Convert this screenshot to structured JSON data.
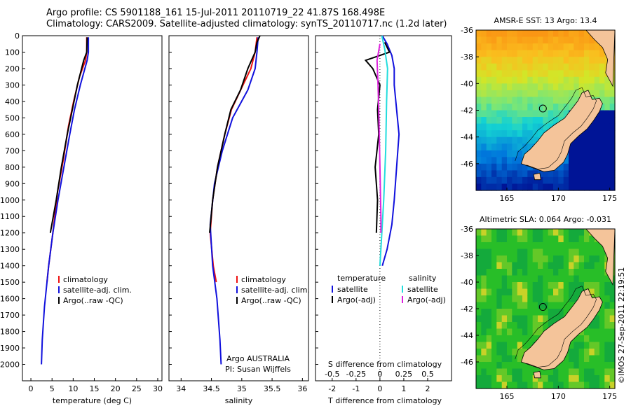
{
  "header": {
    "line1": "Argo profile: CS 5901188_161 15-Jul-2011 20110719_22 41.87S 168.498E",
    "line2": "Climatology: CARS2009. Satellite-adjusted climatology: synTS_20110717.nc (1.2d later)"
  },
  "credit": "©IMOS 27-Sep-2011 22:19:51",
  "colors": {
    "climatology": "#ee1111",
    "satellite": "#1111dd",
    "argo": "#000000",
    "sat_salinity": "#22dddd",
    "argo_salinity": "#dd22dd",
    "land": "#f4c49a"
  },
  "chart_data": [
    {
      "type": "line",
      "xlabel": "temperature (deg C)",
      "ylabel": "",
      "xlim": [
        -2,
        31
      ],
      "ylim": [
        2100,
        0
      ],
      "xticks": [
        0,
        5,
        10,
        15,
        20,
        25,
        30
      ],
      "yticks": [
        0,
        100,
        200,
        300,
        400,
        500,
        600,
        700,
        800,
        900,
        1000,
        1100,
        1200,
        1300,
        1400,
        1500,
        1600,
        1700,
        1800,
        1900,
        2000
      ],
      "legend": {
        "placement": "bottom-center",
        "entries": [
          "climatology",
          "satellite-adj. clim.",
          "Argo(..raw -QC)"
        ]
      },
      "series": [
        {
          "name": "climatology",
          "points": [
            [
              13.2,
              10
            ],
            [
              13.2,
              100
            ],
            [
              12.9,
              150
            ],
            [
              11.5,
              250
            ],
            [
              10.1,
              400
            ],
            [
              8.9,
              550
            ],
            [
              7.7,
              750
            ],
            [
              6.3,
              950
            ],
            [
              5.2,
              1200
            ],
            [
              4.2,
              1400
            ],
            [
              3.8,
              1500
            ]
          ]
        },
        {
          "name": "satellite-adj. clim.",
          "points": [
            [
              13.6,
              10
            ],
            [
              13.6,
              100
            ],
            [
              13.3,
              150
            ],
            [
              11.7,
              300
            ],
            [
              10.3,
              450
            ],
            [
              9.2,
              600
            ],
            [
              7.8,
              800
            ],
            [
              6.4,
              1000
            ],
            [
              5.2,
              1200
            ],
            [
              4.2,
              1400
            ],
            [
              3.2,
              1650
            ],
            [
              2.7,
              1850
            ],
            [
              2.5,
              2000
            ]
          ]
        },
        {
          "name": "Argo(..raw -QC)",
          "points": [
            [
              13.3,
              10
            ],
            [
              13.2,
              100
            ],
            [
              12.5,
              150
            ],
            [
              11.0,
              300
            ],
            [
              9.8,
              450
            ],
            [
              8.6,
              600
            ],
            [
              7.2,
              800
            ],
            [
              6.0,
              1000
            ],
            [
              4.6,
              1200
            ]
          ]
        }
      ]
    },
    {
      "type": "line",
      "xlabel": "salinity",
      "ylabel": "",
      "xlim": [
        33.8,
        36.1
      ],
      "ylim": [
        2100,
        0
      ],
      "xticks": [
        34,
        34.5,
        35,
        35.5,
        36
      ],
      "legend": {
        "placement": "bottom-right",
        "entries": [
          "climatology",
          "satellite-adj. clim.",
          "Argo(..raw -QC)"
        ]
      },
      "annotation": [
        "Argo AUSTRALIA",
        "PI: Susan Wijffels"
      ],
      "series": [
        {
          "name": "climatology",
          "points": [
            [
              35.25,
              10
            ],
            [
              35.22,
              100
            ],
            [
              35.15,
              200
            ],
            [
              35.02,
              300
            ],
            [
              34.83,
              450
            ],
            [
              34.72,
              600
            ],
            [
              34.6,
              800
            ],
            [
              34.52,
              1000
            ],
            [
              34.48,
              1200
            ],
            [
              34.53,
              1400
            ],
            [
              34.58,
              1500
            ]
          ]
        },
        {
          "name": "satellite-adj. clim.",
          "points": [
            [
              35.27,
              10
            ],
            [
              35.25,
              100
            ],
            [
              35.22,
              200
            ],
            [
              35.1,
              330
            ],
            [
              34.85,
              500
            ],
            [
              34.68,
              700
            ],
            [
              34.55,
              900
            ],
            [
              34.48,
              1150
            ],
            [
              34.52,
              1400
            ],
            [
              34.59,
              1600
            ],
            [
              34.64,
              1850
            ],
            [
              34.66,
              2000
            ]
          ]
        },
        {
          "name": "Argo(..raw -QC)",
          "points": [
            [
              35.3,
              0
            ],
            [
              35.25,
              40
            ],
            [
              35.22,
              100
            ],
            [
              35.1,
              200
            ],
            [
              34.98,
              330
            ],
            [
              34.82,
              450
            ],
            [
              34.72,
              600
            ],
            [
              34.6,
              800
            ],
            [
              34.52,
              1000
            ],
            [
              34.47,
              1200
            ]
          ]
        }
      ]
    },
    {
      "type": "line",
      "xlabel": "T difference from climatology",
      "xlabel_top": "S difference from climatology",
      "xlim": [
        -2.7,
        3.0
      ],
      "ylim": [
        2100,
        0
      ],
      "xticks": [
        "-2",
        "-1",
        "0",
        "1",
        "2"
      ],
      "sticks": [
        "-0.5",
        "-0.25",
        "0",
        "0.25",
        "0.5"
      ],
      "legend": {
        "placement": "bottom",
        "temperature_header": "temperature",
        "salinity_header": "salinity",
        "temperature_entries": [
          "satellite",
          "Argo(-adj)"
        ],
        "salinity_entries": [
          "satellite",
          "Argo(-adj)"
        ]
      },
      "series": [
        {
          "name": "satellite",
          "variable": "temperature",
          "points": [
            [
              0.1,
              0
            ],
            [
              0.3,
              50
            ],
            [
              0.5,
              120
            ],
            [
              0.6,
              200
            ],
            [
              0.6,
              300
            ],
            [
              0.7,
              450
            ],
            [
              0.8,
              600
            ],
            [
              0.7,
              800
            ],
            [
              0.6,
              1000
            ],
            [
              0.5,
              1150
            ],
            [
              0.3,
              1300
            ],
            [
              0.1,
              1400
            ]
          ]
        },
        {
          "name": "Argo(-adj)",
          "variable": "temperature",
          "points": [
            [
              0.2,
              40
            ],
            [
              0.4,
              100
            ],
            [
              -0.6,
              150
            ],
            [
              -0.3,
              200
            ],
            [
              0.0,
              300
            ],
            [
              -0.1,
              450
            ],
            [
              -0.05,
              600
            ],
            [
              -0.2,
              800
            ],
            [
              -0.1,
              1000
            ],
            [
              -0.15,
              1200
            ]
          ]
        },
        {
          "name": "satellite",
          "variable": "salinity",
          "points": [
            [
              0.02,
              0
            ],
            [
              0.05,
              80
            ],
            [
              0.08,
              200
            ],
            [
              0.07,
              400
            ],
            [
              0.06,
              700
            ],
            [
              0.04,
              1000
            ],
            [
              0.02,
              1200
            ],
            [
              0.0,
              1400
            ]
          ]
        },
        {
          "name": "Argo(-adj)",
          "variable": "salinity",
          "points": [
            [
              0.0,
              50
            ],
            [
              -0.03,
              150
            ],
            [
              -0.02,
              300
            ],
            [
              -0.01,
              500
            ],
            [
              0.0,
              800
            ],
            [
              0.01,
              1100
            ],
            [
              0.01,
              1200
            ]
          ]
        }
      ]
    },
    {
      "type": "heatmap",
      "title": "AMSR-E SST: 13 Argo: 13.4",
      "xticks": [
        "165",
        "170",
        "175"
      ],
      "yticks": [
        "-36",
        "-38",
        "-40",
        "-42",
        "-44",
        "-46"
      ],
      "lon_range": [
        162,
        175.5
      ],
      "lat_range": [
        -48,
        -36
      ],
      "argo_position": [
        168.498,
        -41.87
      ]
    },
    {
      "type": "heatmap",
      "title": "Altimetric SLA: 0.064 Argo: -0.031",
      "xticks": [
        "165",
        "170",
        "175"
      ],
      "yticks": [
        "-36",
        "-38",
        "-40",
        "-42",
        "-44",
        "-46"
      ],
      "lon_range": [
        162,
        175.5
      ],
      "lat_range": [
        -48,
        -36
      ],
      "argo_position": [
        168.498,
        -41.87
      ]
    }
  ]
}
